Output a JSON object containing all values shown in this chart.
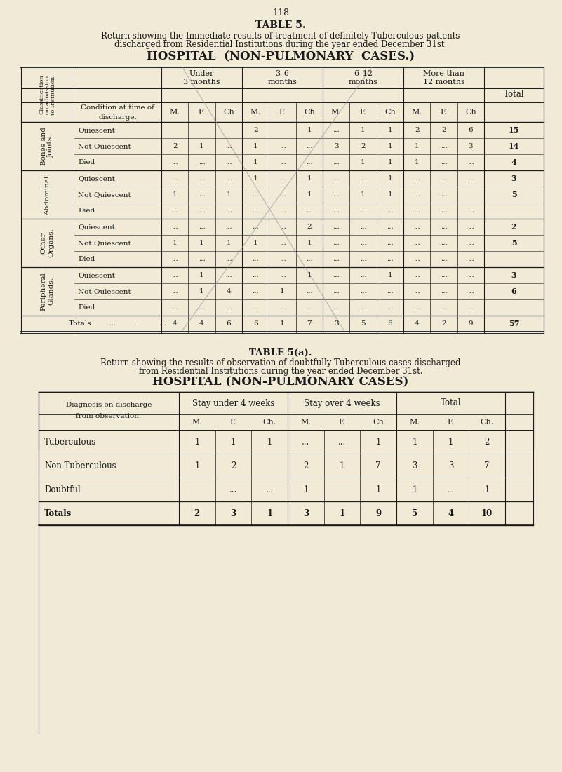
{
  "page_number": "118",
  "t5_title": "TABLE 5.",
  "t5_sub1": "Return showing the Immediate results of treatment of definitely Tuberculous patients",
  "t5_sub2": "discharged from Residential Institutions during the year ended December 31st.",
  "t5_hospital": "HOSPITAL  (NON-PULMONARY  CASES.)",
  "t5_period_labels": [
    "Under\n3 months",
    "3–6\nmonths",
    "6–12\nmonths",
    "More than\n12 months"
  ],
  "t5_sub_headers": [
    "M.",
    "F.",
    "Ch",
    "M.",
    "F.",
    "Ch",
    "M.",
    "F.",
    "Ch",
    "M.",
    "F.",
    "Ch"
  ],
  "t5_groups": [
    "Bones and\nJoints.",
    "Abdominal.",
    "Other\nOrgans.",
    "Peripheral\nGlands."
  ],
  "t5_conds": [
    "Quiescent",
    "Not Quiescent",
    "Died"
  ],
  "t5_values": {
    "Bones and Joints": {
      "Quiescent": [
        "",
        "",
        "",
        "2",
        "",
        "1",
        "...",
        "1",
        "1",
        "2",
        "2",
        "6",
        "15"
      ],
      "Not Quiescent": [
        "2",
        "1",
        "...",
        "1",
        "...",
        "...",
        "3",
        "2",
        "1",
        "1",
        "...",
        "3",
        "14"
      ],
      "Died": [
        "...",
        "...",
        "...",
        "1",
        "...",
        "...",
        "...",
        "1",
        "1",
        "1",
        "...",
        "...",
        "4"
      ]
    },
    "Abdominal": {
      "Quiescent": [
        "...",
        "...",
        "...",
        "1",
        "...",
        "1",
        "...",
        "...",
        "1",
        "...",
        "...",
        "...",
        "3"
      ],
      "Not Quiescent": [
        "1",
        "...",
        "1",
        "...",
        "...",
        "1",
        "...",
        "1",
        "1",
        "...",
        "...",
        "..",
        "5"
      ],
      "Died": [
        "...",
        "...",
        "...",
        "...",
        "...",
        "...",
        "...",
        "...",
        "...",
        "...",
        "...",
        "...",
        "..."
      ]
    },
    "Other Organs": {
      "Quiescent": [
        "...",
        "...",
        "...",
        "...",
        "...",
        "2",
        "...",
        "...",
        "...",
        "...",
        "...",
        "...",
        "2"
      ],
      "Not Quiescent": [
        "1",
        "1",
        "1",
        "1",
        "...",
        "1",
        "...",
        "...",
        "...",
        "...",
        "...",
        "...",
        "5"
      ],
      "Died": [
        "...",
        "...",
        "...",
        "...",
        "...",
        "...",
        "...",
        "...",
        "...",
        "...",
        "...",
        "...",
        "..."
      ]
    },
    "Peripheral Glands": {
      "Quiescent": [
        "...",
        "1",
        "...",
        "...",
        "...",
        "1",
        "...",
        "...",
        "1",
        "...",
        "...",
        "...",
        "3"
      ],
      "Not Quiescent": [
        "...",
        "1",
        "4",
        "...",
        "1",
        "...",
        "...",
        "...",
        "...",
        "...",
        "...",
        "...",
        "6"
      ],
      "Died": [
        "...",
        "...",
        "...",
        "...",
        "...",
        "...",
        "...",
        "...",
        "...",
        "...",
        "...",
        "...",
        "..."
      ]
    }
  },
  "t5_totals": [
    "4",
    "4",
    "6",
    "6",
    "1",
    "7",
    "3",
    "5",
    "6",
    "4",
    "2",
    "9",
    "57"
  ],
  "t5a_title": "TABLE 5(a).",
  "t5a_sub1": "Return showing the results of observation of doubtfully Tuberculous cases discharged",
  "t5a_sub2": "from Residential Institutions during the year ended December 31st.",
  "t5a_hospital": "HOSPITAL (NON-PULMONARY CASES)",
  "t5a_col_groups": [
    "Stay under 4 weeks",
    "Stay over 4 weeks",
    "Total"
  ],
  "t5a_sub_headers": [
    "M.",
    "F.",
    "Ch.",
    "M.",
    "F.",
    "Ch",
    "M.",
    "F.",
    "Ch."
  ],
  "t5a_rows": [
    [
      "Tuberculous",
      "1",
      "1",
      "1",
      "...",
      "...",
      "1",
      "1",
      "1",
      "2"
    ],
    [
      "Non-Tuberculous",
      "1",
      "2",
      "..",
      "2",
      "1",
      "7",
      "3",
      "3",
      "7"
    ],
    [
      "Doubtful",
      "..",
      "...",
      "...",
      "1",
      "..",
      "1",
      "1",
      "...",
      "1"
    ],
    [
      "Totals",
      "2",
      "3",
      "1",
      "3",
      "1",
      "9",
      "5",
      "4",
      "10"
    ]
  ],
  "bg_color": "#f0ead6"
}
